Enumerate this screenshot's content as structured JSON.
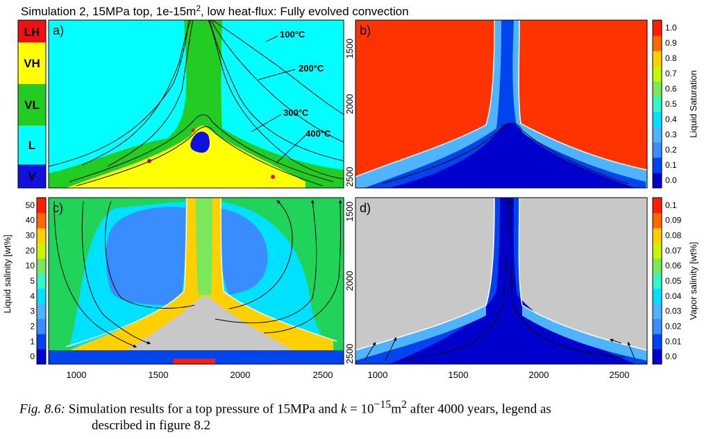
{
  "title": {
    "text": "Simulation 2, 15MPa top, 1e-15m",
    "sup": "2",
    "rest": ", low heat-flux: Fully evolved convection"
  },
  "phase_legend": [
    {
      "label": "LH",
      "color": "#ee1111"
    },
    {
      "label": "VH",
      "color": "#ffff00"
    },
    {
      "label": "VL",
      "color": "#22cc22"
    },
    {
      "label": "L",
      "color": "#00ffff"
    },
    {
      "label": "V",
      "color": "#1111dd"
    }
  ],
  "panel_labels": [
    "a)",
    "b)",
    "c)",
    "d)"
  ],
  "isotherm_labels": [
    "100",
    "200",
    "300",
    "400"
  ],
  "isotherm_unit": "°C",
  "colorbars": {
    "liquid_saturation": {
      "label": "Liquid Saturation",
      "ticks": [
        "1.0",
        "0.9",
        "0.8",
        "0.7",
        "0.6",
        "0.5",
        "0.4",
        "0.3",
        "0.2",
        "0.1",
        "0.0"
      ]
    },
    "liquid_salinity": {
      "label": "Liquid salinity [wt%]",
      "ticks": [
        "50",
        "40",
        "30",
        "20",
        "10",
        "5",
        "4",
        "3",
        "2",
        "1",
        "0"
      ]
    },
    "vapor_salinity": {
      "label": "Vapor salinity [wt%]",
      "ticks": [
        "0.1",
        "0.09",
        "0.08",
        "0.07",
        "0.06",
        "0.05",
        "0.04",
        "0.03",
        "0.02",
        "0.01",
        "0.0"
      ]
    }
  },
  "colors": {
    "scale": [
      "#0000cc",
      "#0044ee",
      "#3a8dff",
      "#4fb4ff",
      "#00e0ff",
      "#36f5c8",
      "#7ae85a",
      "#c8f500",
      "#ffd000",
      "#ff6a00",
      "#ff1e00"
    ],
    "grey": "#c8c8c8"
  },
  "caption": {
    "lead": "Fig. 8.6:",
    "text_a": "Simulation results for a top pressure of 15MPa and ",
    "math": "k",
    "text_b": " = 10",
    "exp": "−15",
    "unit": "m",
    "unit_exp": "2",
    "text_c": " after 4000 years, legend as",
    "line2": "described in figure 8.2"
  },
  "chart_data": [
    {
      "panel": "a",
      "type": "heatmap",
      "quantity": "phase state",
      "x_range": [
        850,
        2650
      ],
      "isotherms": [
        100,
        200,
        300,
        400
      ],
      "legend_entries": [
        "LH",
        "VH",
        "VL",
        "L",
        "V"
      ]
    },
    {
      "panel": "b",
      "type": "heatmap",
      "quantity": "Liquid Saturation",
      "x_range": [
        850,
        2650
      ],
      "y_ticks": [
        1500,
        2000,
        2500
      ],
      "value_range": [
        0.0,
        1.0
      ]
    },
    {
      "panel": "c",
      "type": "heatmap",
      "quantity": "Liquid salinity [wt%]",
      "x_ticks": [
        1000,
        1500,
        2000,
        2500
      ],
      "value_ticks": [
        0,
        1,
        2,
        3,
        4,
        5,
        10,
        20,
        30,
        40,
        50
      ]
    },
    {
      "panel": "d",
      "type": "heatmap",
      "quantity": "Vapor salinity [wt%]",
      "x_ticks": [
        1000,
        1500,
        2000,
        2500
      ],
      "y_ticks": [
        1500,
        2000,
        2500
      ],
      "value_range": [
        0.0,
        0.1
      ]
    }
  ]
}
